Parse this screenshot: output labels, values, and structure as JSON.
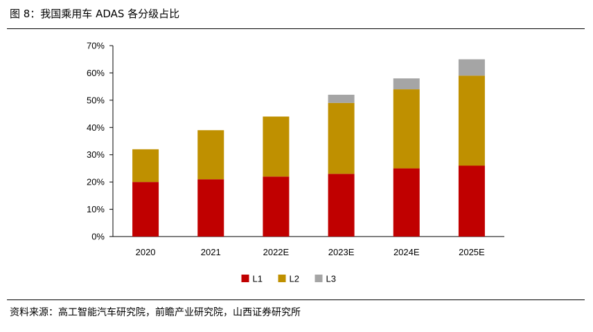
{
  "figure_title": "图 8：我国乘用车 ADAS 各分级占比",
  "source_note": "资料来源：高工智能汽车研究院，前瞻产业研究院，山西证券研究所",
  "chart_data": {
    "type": "bar",
    "stacked": true,
    "categories": [
      "2020",
      "2021",
      "2022E",
      "2023E",
      "2024E",
      "2025E"
    ],
    "series": [
      {
        "name": "L1",
        "color": "#C00000",
        "values": [
          20,
          21,
          22,
          23,
          25,
          26
        ]
      },
      {
        "name": "L2",
        "color": "#BF9000",
        "values": [
          12,
          18,
          22,
          26,
          29,
          33
        ]
      },
      {
        "name": "L3",
        "color": "#A5A5A5",
        "values": [
          0,
          0,
          0,
          3,
          4,
          6
        ]
      }
    ],
    "ylim": [
      0,
      70
    ],
    "yticks": [
      0,
      10,
      20,
      30,
      40,
      50,
      60,
      70
    ],
    "ytick_format": "percent",
    "grid": false,
    "legend_position": "bottom"
  }
}
